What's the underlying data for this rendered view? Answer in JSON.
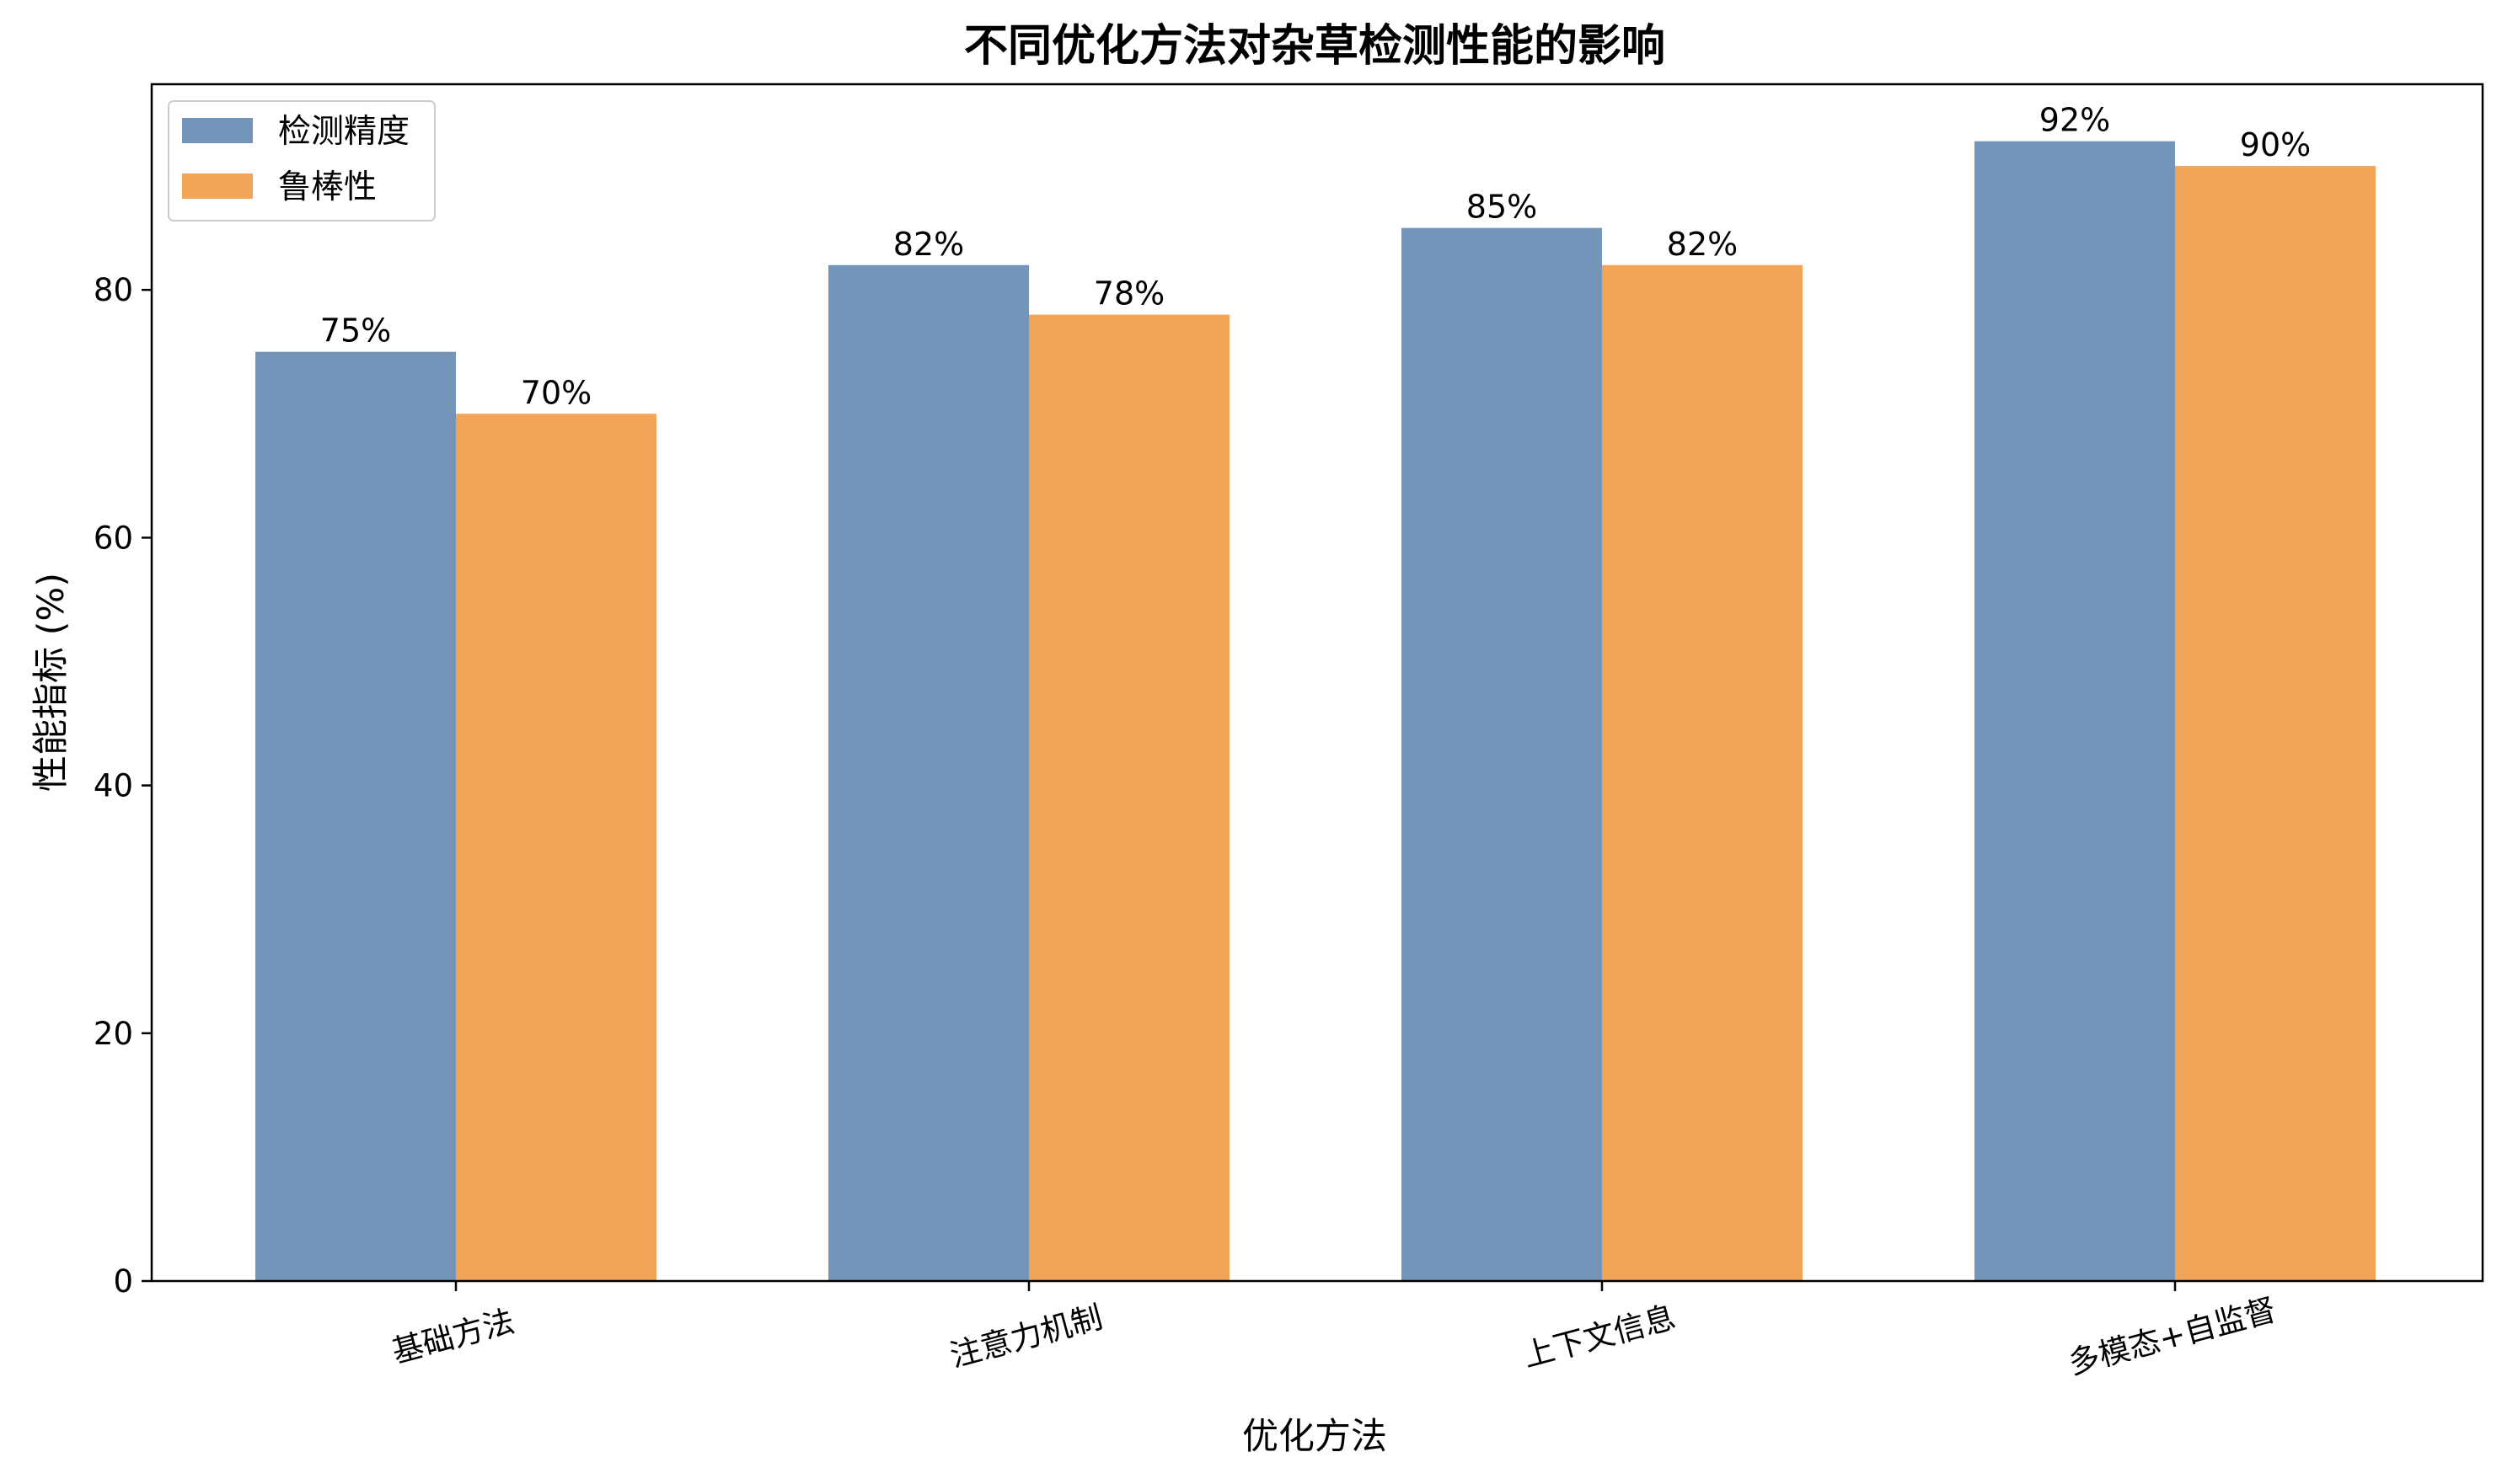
{
  "chart_data": {
    "type": "bar",
    "title": "不同优化方法对杂草检测性能的影响",
    "xlabel": "优化方法",
    "ylabel": "性能指标 (%)",
    "categories": [
      "基础方法",
      "注意力机制",
      "上下文信息",
      "多模态+自监督"
    ],
    "series": [
      {
        "name": "检测精度",
        "values": [
          75,
          82,
          85,
          92
        ],
        "color": "#7295B9"
      },
      {
        "name": "鲁棒性",
        "values": [
          70,
          78,
          82,
          90
        ],
        "color": "#F2A457"
      }
    ],
    "ylim": [
      0,
      96.6
    ],
    "yticks": [
      0,
      20,
      40,
      60,
      80
    ],
    "value_suffix": "%",
    "grid": false,
    "legend_position": "top-left"
  }
}
